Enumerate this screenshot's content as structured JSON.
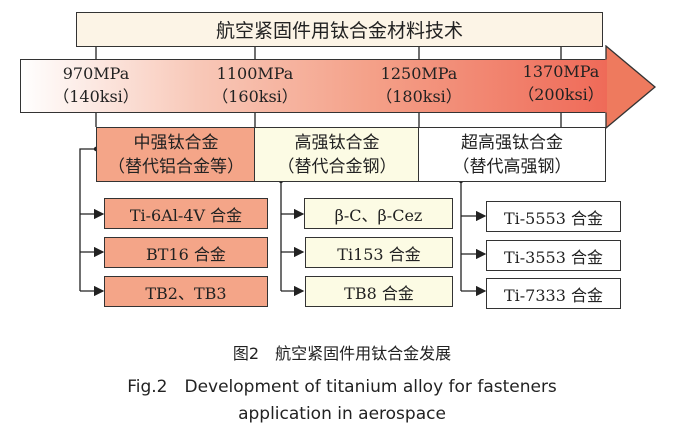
{
  "title": "航空紧固件用钛合金材料技术",
  "strength_levels": [
    {
      "mpa": "970MPa",
      "ksi": "（140ksi）"
    },
    {
      "mpa": "1100MPa",
      "ksi": "（160ksi）"
    },
    {
      "mpa": "1250MPa",
      "ksi": "（180ksi）"
    },
    {
      "mpa": "1370MPa",
      "ksi": "（200ksi）"
    }
  ],
  "categories": [
    {
      "name": "中强钛合金",
      "note": "（替代铝合金等）",
      "color": "#f4a588",
      "alloys": [
        "Ti-6Al-4V 合金",
        "BT16 合金",
        "TB2、TB3"
      ]
    },
    {
      "name": "高强钛合金",
      "note": "（替代合金钢）",
      "color": "#fcfbe4",
      "alloys": [
        "β-C、β-Cez",
        "Ti153 合金",
        "TB8 合金"
      ]
    },
    {
      "name": "超高强钛合金",
      "note": "（替代高强钢）",
      "color": "#ffffff",
      "alloys": [
        "Ti-5553 合金",
        "Ti-3553 合金",
        "Ti-7333 合金"
      ]
    }
  ],
  "caption": {
    "cn": "图2　航空紧固件用钛合金发展",
    "en_line1": "Fig.2　Development of titanium alloy for fasteners",
    "en_line2": "application in aerospace"
  }
}
